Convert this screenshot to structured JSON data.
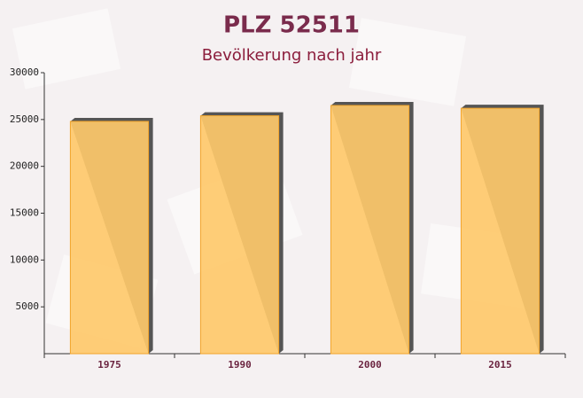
{
  "chart_data": {
    "type": "bar",
    "title": "PLZ 52511",
    "subtitle": "Bevölkerung nach jahr",
    "categories": [
      "1975",
      "1990",
      "2000",
      "2015"
    ],
    "values": [
      24800,
      25400,
      26500,
      26200
    ],
    "color": "#fec96b",
    "ylim": [
      0,
      30000
    ],
    "yticks": [
      5000,
      10000,
      15000,
      20000,
      25000,
      30000
    ],
    "grid": false
  }
}
